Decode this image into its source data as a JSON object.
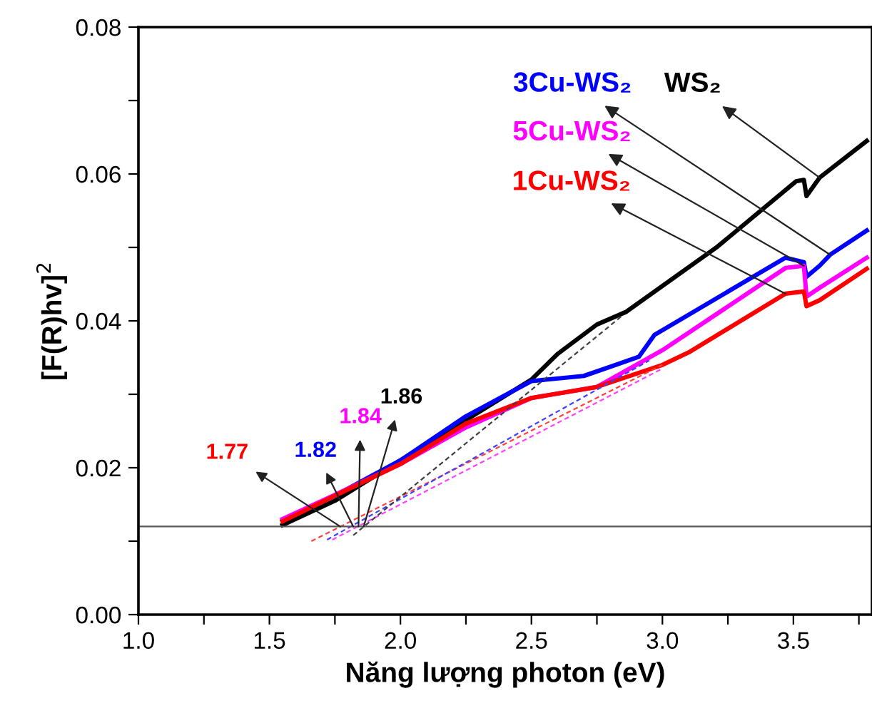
{
  "chart_data": {
    "type": "line",
    "xlabel": "Năng lượng photon (eV)",
    "ylabel": "[F(R)hv]$^{2}$",
    "xlim": [
      1.0,
      3.8
    ],
    "ylim": [
      0.0,
      0.08
    ],
    "xticks": [
      {
        "value": 1.0,
        "label": "1.0"
      },
      {
        "value": 1.25,
        "label": null
      },
      {
        "value": 1.5,
        "label": "1.5"
      },
      {
        "value": 1.75,
        "label": null
      },
      {
        "value": 2.0,
        "label": "2.0"
      },
      {
        "value": 2.25,
        "label": null
      },
      {
        "value": 2.5,
        "label": "2.5"
      },
      {
        "value": 2.75,
        "label": null
      },
      {
        "value": 3.0,
        "label": "3.0"
      },
      {
        "value": 3.25,
        "label": null
      },
      {
        "value": 3.5,
        "label": "3.5"
      },
      {
        "value": 3.75,
        "label": null
      }
    ],
    "yticks": [
      {
        "value": 0.0,
        "label": "0.00"
      },
      {
        "value": 0.01,
        "label": null
      },
      {
        "value": 0.02,
        "label": "0.02"
      },
      {
        "value": 0.03,
        "label": null
      },
      {
        "value": 0.04,
        "label": "0.04"
      },
      {
        "value": 0.05,
        "label": null
      },
      {
        "value": 0.06,
        "label": "0.06"
      },
      {
        "value": 0.07,
        "label": null
      },
      {
        "value": 0.08,
        "label": "0.08"
      }
    ],
    "grid": false,
    "legend": false,
    "marker": "none",
    "ref_lines": [
      {
        "axis": "y",
        "value": 0.012,
        "color": "#555555",
        "line_style": "solid"
      }
    ],
    "series": [
      {
        "color": "#000000",
        "line_style": "solid",
        "x": [
          1.55,
          1.75,
          2.0,
          2.25,
          2.5,
          2.6,
          2.75,
          2.86,
          3.21,
          3.51,
          3.54,
          3.55,
          3.6,
          3.78
        ],
        "values": [
          0.0122,
          0.0155,
          0.021,
          0.0265,
          0.032,
          0.0355,
          0.0395,
          0.0412,
          0.0501,
          0.059,
          0.0592,
          0.057,
          0.0595,
          0.0645
        ]
      },
      {
        "color": "#0000ff",
        "line_style": "solid",
        "x": [
          1.55,
          1.75,
          2.0,
          2.25,
          2.5,
          2.7,
          2.91,
          2.97,
          3.47,
          3.54,
          3.55,
          3.6,
          3.64,
          3.78
        ],
        "values": [
          0.0128,
          0.0162,
          0.021,
          0.027,
          0.0318,
          0.0325,
          0.0351,
          0.0381,
          0.0486,
          0.048,
          0.046,
          0.0475,
          0.049,
          0.0523
        ]
      },
      {
        "color": "#ff00ff",
        "line_style": "solid",
        "x": [
          1.55,
          1.75,
          2.0,
          2.25,
          2.5,
          2.75,
          3.0,
          3.47,
          3.54,
          3.55,
          3.6,
          3.78
        ],
        "values": [
          0.013,
          0.0163,
          0.0205,
          0.0255,
          0.0295,
          0.031,
          0.036,
          0.0472,
          0.0475,
          0.0433,
          0.0445,
          0.0486
        ]
      },
      {
        "color": "#ff0000",
        "line_style": "solid",
        "x": [
          1.55,
          1.75,
          2.0,
          2.25,
          2.5,
          2.75,
          3.0,
          3.1,
          3.47,
          3.54,
          3.55,
          3.6,
          3.78
        ],
        "values": [
          0.0127,
          0.0162,
          0.0205,
          0.026,
          0.0295,
          0.031,
          0.034,
          0.0357,
          0.0437,
          0.044,
          0.042,
          0.0428,
          0.0471
        ]
      },
      {
        "color": "#ff4040",
        "line_style": "dashed",
        "x": [
          1.66,
          3.0
        ],
        "values": [
          0.01,
          0.034
        ]
      },
      {
        "color": "#4040ff",
        "line_style": "dashed",
        "x": [
          1.72,
          2.95
        ],
        "values": [
          0.0102,
          0.0346
        ]
      },
      {
        "color": "#ff40ff",
        "line_style": "dashed",
        "x": [
          1.74,
          3.0
        ],
        "values": [
          0.0102,
          0.0335
        ]
      },
      {
        "color": "#404040",
        "line_style": "dashed",
        "x": [
          1.82,
          2.85
        ],
        "values": [
          0.0108,
          0.0408
        ]
      }
    ],
    "annotations": [
      {
        "text": "1.77",
        "x": 1.77,
        "y": 0.012
      },
      {
        "text": "1.82",
        "x": 1.82,
        "y": 0.012
      },
      {
        "text": "1.84",
        "x": 1.84,
        "y": 0.012
      },
      {
        "text": "1.86",
        "x": 1.86,
        "y": 0.012
      },
      {
        "text": "WS₂",
        "x": 3.6,
        "y": 0.0595
      },
      {
        "text": "3Cu-WS₂",
        "x": 3.64,
        "y": 0.049
      },
      {
        "text": "5Cu-WS₂",
        "x": 3.54,
        "y": 0.0475
      },
      {
        "text": "1Cu-WS₂",
        "x": 3.47,
        "y": 0.0437
      }
    ]
  }
}
